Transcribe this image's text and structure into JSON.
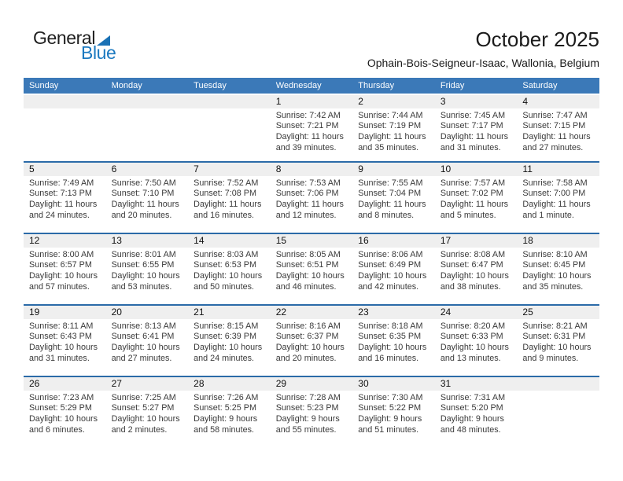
{
  "logo": {
    "word1": "General",
    "word2": "Blue"
  },
  "header": {
    "title": "October 2025",
    "subtitle": "Ophain-Bois-Seigneur-Isaac, Wallonia, Belgium"
  },
  "colors": {
    "header_blue": "#3b79b8",
    "week_separator_blue": "#2b6ba8",
    "day_strip_gray": "#efefef",
    "logo_triangle_blue": "#1a71b5",
    "logo_text_blue": "#1b79c0"
  },
  "calendar": {
    "weekday_headers": [
      "Sunday",
      "Monday",
      "Tuesday",
      "Wednesday",
      "Thursday",
      "Friday",
      "Saturday"
    ],
    "weeks": [
      [
        null,
        null,
        null,
        {
          "day": "1",
          "sunrise": "Sunrise: 7:42 AM",
          "sunset": "Sunset: 7:21 PM",
          "daylight": [
            "Daylight: 11 hours",
            "and 39 minutes."
          ]
        },
        {
          "day": "2",
          "sunrise": "Sunrise: 7:44 AM",
          "sunset": "Sunset: 7:19 PM",
          "daylight": [
            "Daylight: 11 hours",
            "and 35 minutes."
          ]
        },
        {
          "day": "3",
          "sunrise": "Sunrise: 7:45 AM",
          "sunset": "Sunset: 7:17 PM",
          "daylight": [
            "Daylight: 11 hours",
            "and 31 minutes."
          ]
        },
        {
          "day": "4",
          "sunrise": "Sunrise: 7:47 AM",
          "sunset": "Sunset: 7:15 PM",
          "daylight": [
            "Daylight: 11 hours",
            "and 27 minutes."
          ]
        }
      ],
      [
        {
          "day": "5",
          "sunrise": "Sunrise: 7:49 AM",
          "sunset": "Sunset: 7:13 PM",
          "daylight": [
            "Daylight: 11 hours",
            "and 24 minutes."
          ]
        },
        {
          "day": "6",
          "sunrise": "Sunrise: 7:50 AM",
          "sunset": "Sunset: 7:10 PM",
          "daylight": [
            "Daylight: 11 hours",
            "and 20 minutes."
          ]
        },
        {
          "day": "7",
          "sunrise": "Sunrise: 7:52 AM",
          "sunset": "Sunset: 7:08 PM",
          "daylight": [
            "Daylight: 11 hours",
            "and 16 minutes."
          ]
        },
        {
          "day": "8",
          "sunrise": "Sunrise: 7:53 AM",
          "sunset": "Sunset: 7:06 PM",
          "daylight": [
            "Daylight: 11 hours",
            "and 12 minutes."
          ]
        },
        {
          "day": "9",
          "sunrise": "Sunrise: 7:55 AM",
          "sunset": "Sunset: 7:04 PM",
          "daylight": [
            "Daylight: 11 hours",
            "and 8 minutes."
          ]
        },
        {
          "day": "10",
          "sunrise": "Sunrise: 7:57 AM",
          "sunset": "Sunset: 7:02 PM",
          "daylight": [
            "Daylight: 11 hours",
            "and 5 minutes."
          ]
        },
        {
          "day": "11",
          "sunrise": "Sunrise: 7:58 AM",
          "sunset": "Sunset: 7:00 PM",
          "daylight": [
            "Daylight: 11 hours",
            "and 1 minute."
          ]
        }
      ],
      [
        {
          "day": "12",
          "sunrise": "Sunrise: 8:00 AM",
          "sunset": "Sunset: 6:57 PM",
          "daylight": [
            "Daylight: 10 hours",
            "and 57 minutes."
          ]
        },
        {
          "day": "13",
          "sunrise": "Sunrise: 8:01 AM",
          "sunset": "Sunset: 6:55 PM",
          "daylight": [
            "Daylight: 10 hours",
            "and 53 minutes."
          ]
        },
        {
          "day": "14",
          "sunrise": "Sunrise: 8:03 AM",
          "sunset": "Sunset: 6:53 PM",
          "daylight": [
            "Daylight: 10 hours",
            "and 50 minutes."
          ]
        },
        {
          "day": "15",
          "sunrise": "Sunrise: 8:05 AM",
          "sunset": "Sunset: 6:51 PM",
          "daylight": [
            "Daylight: 10 hours",
            "and 46 minutes."
          ]
        },
        {
          "day": "16",
          "sunrise": "Sunrise: 8:06 AM",
          "sunset": "Sunset: 6:49 PM",
          "daylight": [
            "Daylight: 10 hours",
            "and 42 minutes."
          ]
        },
        {
          "day": "17",
          "sunrise": "Sunrise: 8:08 AM",
          "sunset": "Sunset: 6:47 PM",
          "daylight": [
            "Daylight: 10 hours",
            "and 38 minutes."
          ]
        },
        {
          "day": "18",
          "sunrise": "Sunrise: 8:10 AM",
          "sunset": "Sunset: 6:45 PM",
          "daylight": [
            "Daylight: 10 hours",
            "and 35 minutes."
          ]
        }
      ],
      [
        {
          "day": "19",
          "sunrise": "Sunrise: 8:11 AM",
          "sunset": "Sunset: 6:43 PM",
          "daylight": [
            "Daylight: 10 hours",
            "and 31 minutes."
          ]
        },
        {
          "day": "20",
          "sunrise": "Sunrise: 8:13 AM",
          "sunset": "Sunset: 6:41 PM",
          "daylight": [
            "Daylight: 10 hours",
            "and 27 minutes."
          ]
        },
        {
          "day": "21",
          "sunrise": "Sunrise: 8:15 AM",
          "sunset": "Sunset: 6:39 PM",
          "daylight": [
            "Daylight: 10 hours",
            "and 24 minutes."
          ]
        },
        {
          "day": "22",
          "sunrise": "Sunrise: 8:16 AM",
          "sunset": "Sunset: 6:37 PM",
          "daylight": [
            "Daylight: 10 hours",
            "and 20 minutes."
          ]
        },
        {
          "day": "23",
          "sunrise": "Sunrise: 8:18 AM",
          "sunset": "Sunset: 6:35 PM",
          "daylight": [
            "Daylight: 10 hours",
            "and 16 minutes."
          ]
        },
        {
          "day": "24",
          "sunrise": "Sunrise: 8:20 AM",
          "sunset": "Sunset: 6:33 PM",
          "daylight": [
            "Daylight: 10 hours",
            "and 13 minutes."
          ]
        },
        {
          "day": "25",
          "sunrise": "Sunrise: 8:21 AM",
          "sunset": "Sunset: 6:31 PM",
          "daylight": [
            "Daylight: 10 hours",
            "and 9 minutes."
          ]
        }
      ],
      [
        {
          "day": "26",
          "sunrise": "Sunrise: 7:23 AM",
          "sunset": "Sunset: 5:29 PM",
          "daylight": [
            "Daylight: 10 hours",
            "and 6 minutes."
          ]
        },
        {
          "day": "27",
          "sunrise": "Sunrise: 7:25 AM",
          "sunset": "Sunset: 5:27 PM",
          "daylight": [
            "Daylight: 10 hours",
            "and 2 minutes."
          ]
        },
        {
          "day": "28",
          "sunrise": "Sunrise: 7:26 AM",
          "sunset": "Sunset: 5:25 PM",
          "daylight": [
            "Daylight: 9 hours",
            "and 58 minutes."
          ]
        },
        {
          "day": "29",
          "sunrise": "Sunrise: 7:28 AM",
          "sunset": "Sunset: 5:23 PM",
          "daylight": [
            "Daylight: 9 hours",
            "and 55 minutes."
          ]
        },
        {
          "day": "30",
          "sunrise": "Sunrise: 7:30 AM",
          "sunset": "Sunset: 5:22 PM",
          "daylight": [
            "Daylight: 9 hours",
            "and 51 minutes."
          ]
        },
        {
          "day": "31",
          "sunrise": "Sunrise: 7:31 AM",
          "sunset": "Sunset: 5:20 PM",
          "daylight": [
            "Daylight: 9 hours",
            "and 48 minutes."
          ]
        },
        null
      ]
    ]
  }
}
